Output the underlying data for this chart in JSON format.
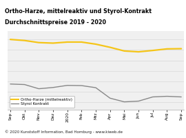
{
  "title_line1": "Ortho-Harze, mittelreaktiv und Styrol-Kontrakt",
  "title_line2": "Durchschnittspreise 2019 - 2020",
  "title_bg": "#f5c518",
  "x_labels": [
    "Sep",
    "Okt",
    "Nov",
    "Dez",
    "2020",
    "Feb",
    "Mrz",
    "Apr",
    "Mai",
    "Jun",
    "Jul",
    "Aug",
    "Sep"
  ],
  "ortho_values": [
    1.0,
    0.99,
    0.97,
    0.965,
    0.975,
    0.975,
    0.955,
    0.925,
    0.89,
    0.882,
    0.895,
    0.91,
    0.912
  ],
  "styrol_values": [
    0.575,
    0.57,
    0.53,
    0.542,
    0.562,
    0.56,
    0.54,
    0.44,
    0.405,
    0.412,
    0.452,
    0.458,
    0.452
  ],
  "ortho_color": "#f5c518",
  "styrol_color": "#888888",
  "plot_bg": "#f0f0f0",
  "footer": "© 2020 Kunststoff Information, Bad Homburg - www.kiweb.de",
  "footer_bg": "#b0b0b0",
  "legend_ortho": "Ortho-Harze (mittelreaktiv)",
  "legend_styrol": "Styrol Kontrakt",
  "ylim": [
    0.33,
    1.08
  ],
  "grid_color": "#d8d8d8",
  "title_fontsize": 5.8,
  "tick_fontsize": 4.2,
  "legend_fontsize": 4.0
}
